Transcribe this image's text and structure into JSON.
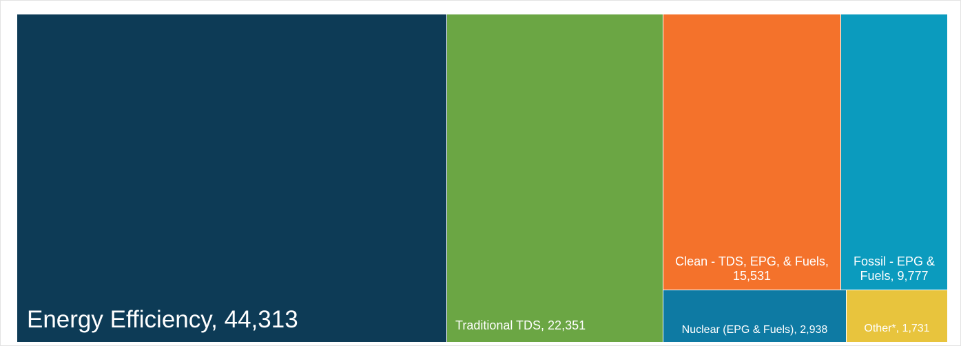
{
  "chart_data": {
    "type": "treemap",
    "items": [
      {
        "label": "Energy Efficiency, 44,313",
        "name": "Energy Efficiency",
        "value": 44313,
        "color": "#0d3b56"
      },
      {
        "label": "Traditional TDS, 22,351",
        "name": "Traditional TDS",
        "value": 22351,
        "color": "#6ba644"
      },
      {
        "label": "Clean - TDS, EPG, & Fuels, 15,531",
        "name": "Clean - TDS, EPG, & Fuels",
        "value": 15531,
        "color": "#f4722b"
      },
      {
        "label": "Fossil - EPG & Fuels, 9,777",
        "name": "Fossil - EPG & Fuels",
        "value": 9777,
        "color": "#0b9bbe"
      },
      {
        "label": "Nuclear (EPG & Fuels), 2,938",
        "name": "Nuclear (EPG & Fuels)",
        "value": 2938,
        "color": "#0e7aa3"
      },
      {
        "label": "Other*, 1,731",
        "name": "Other*",
        "value": 1731,
        "color": "#e8c43d"
      }
    ]
  }
}
